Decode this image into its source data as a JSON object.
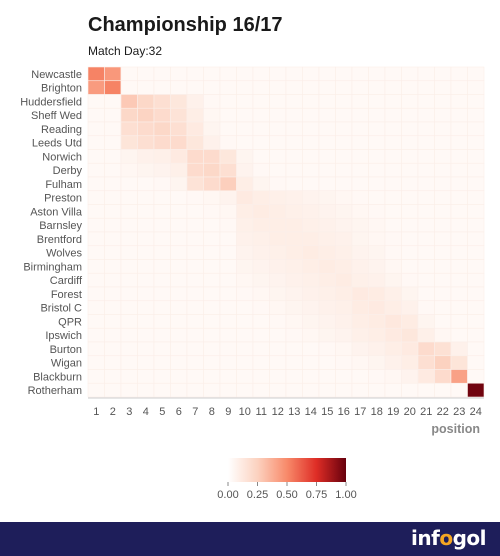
{
  "header": {
    "title": "Championship 16/17",
    "subtitle": "Match Day:32"
  },
  "chart_data": {
    "type": "heatmap",
    "title": "Championship 16/17",
    "subtitle": "Match Day:32",
    "xlabel": "position",
    "ylabel": "",
    "x": [
      1,
      2,
      3,
      4,
      5,
      6,
      7,
      8,
      9,
      10,
      11,
      12,
      13,
      14,
      15,
      16,
      17,
      18,
      19,
      20,
      21,
      22,
      23,
      24
    ],
    "teams": [
      "Newcastle",
      "Brighton",
      "Huddersfield",
      "Sheff Wed",
      "Reading",
      "Leeds Utd",
      "Norwich",
      "Derby",
      "Fulham",
      "Preston",
      "Aston Villa",
      "Barnsley",
      "Brentford",
      "Wolves",
      "Birmingham",
      "Cardiff",
      "Forest",
      "Bristol C",
      "QPR",
      "Ipswich",
      "Burton",
      "Wigan",
      "Blackburn",
      "Rotherham"
    ],
    "color_scale": {
      "min": 0,
      "max": 1,
      "low_color": "#ffffff",
      "high_color": "#67000d",
      "ticks": [
        "0.00",
        "0.25",
        "0.50",
        "0.75",
        "1.00"
      ]
    },
    "values": [
      [
        0.52,
        0.45,
        0.02,
        0.01,
        0,
        0,
        0,
        0,
        0,
        0,
        0,
        0,
        0,
        0,
        0,
        0,
        0,
        0,
        0,
        0,
        0,
        0,
        0,
        0
      ],
      [
        0.44,
        0.52,
        0.03,
        0.01,
        0,
        0,
        0,
        0,
        0,
        0,
        0,
        0,
        0,
        0,
        0,
        0,
        0,
        0,
        0,
        0,
        0,
        0,
        0,
        0
      ],
      [
        0.01,
        0.02,
        0.28,
        0.22,
        0.18,
        0.14,
        0.08,
        0.04,
        0.02,
        0.01,
        0,
        0,
        0,
        0,
        0,
        0,
        0,
        0,
        0,
        0,
        0,
        0,
        0,
        0
      ],
      [
        0,
        0.01,
        0.22,
        0.24,
        0.2,
        0.16,
        0.1,
        0.05,
        0.02,
        0.01,
        0,
        0,
        0,
        0,
        0,
        0,
        0,
        0,
        0,
        0,
        0,
        0,
        0,
        0
      ],
      [
        0,
        0,
        0.18,
        0.2,
        0.22,
        0.18,
        0.12,
        0.06,
        0.03,
        0.01,
        0,
        0,
        0,
        0,
        0,
        0,
        0,
        0,
        0,
        0,
        0,
        0,
        0,
        0
      ],
      [
        0,
        0,
        0.15,
        0.18,
        0.2,
        0.2,
        0.14,
        0.08,
        0.04,
        0.01,
        0,
        0,
        0,
        0,
        0,
        0,
        0,
        0,
        0,
        0,
        0,
        0,
        0,
        0
      ],
      [
        0,
        0,
        0.06,
        0.08,
        0.09,
        0.12,
        0.2,
        0.2,
        0.14,
        0.06,
        0.03,
        0.02,
        0,
        0,
        0,
        0,
        0,
        0,
        0,
        0,
        0,
        0,
        0,
        0
      ],
      [
        0,
        0,
        0.05,
        0.06,
        0.07,
        0.09,
        0.2,
        0.22,
        0.18,
        0.07,
        0.04,
        0.02,
        0,
        0,
        0,
        0,
        0,
        0,
        0,
        0,
        0,
        0,
        0,
        0
      ],
      [
        0,
        0,
        0.02,
        0.03,
        0.04,
        0.06,
        0.16,
        0.2,
        0.26,
        0.1,
        0.06,
        0.04,
        0.02,
        0.01,
        0,
        0,
        0,
        0,
        0,
        0,
        0,
        0,
        0,
        0
      ],
      [
        0,
        0,
        0,
        0.01,
        0.01,
        0.02,
        0.04,
        0.05,
        0.07,
        0.12,
        0.1,
        0.09,
        0.08,
        0.07,
        0.06,
        0.05,
        0.04,
        0.03,
        0.02,
        0.01,
        0,
        0,
        0,
        0
      ],
      [
        0,
        0,
        0,
        0,
        0.01,
        0.01,
        0.03,
        0.04,
        0.05,
        0.1,
        0.11,
        0.1,
        0.09,
        0.08,
        0.07,
        0.06,
        0.05,
        0.04,
        0.03,
        0.02,
        0.01,
        0,
        0,
        0
      ],
      [
        0,
        0,
        0,
        0,
        0,
        0.01,
        0.02,
        0.03,
        0.04,
        0.09,
        0.1,
        0.1,
        0.1,
        0.09,
        0.08,
        0.07,
        0.06,
        0.05,
        0.03,
        0.02,
        0.01,
        0,
        0,
        0
      ],
      [
        0,
        0,
        0,
        0,
        0,
        0,
        0.02,
        0.02,
        0.03,
        0.08,
        0.09,
        0.1,
        0.1,
        0.1,
        0.09,
        0.08,
        0.06,
        0.05,
        0.04,
        0.02,
        0.01,
        0,
        0,
        0
      ],
      [
        0,
        0,
        0,
        0,
        0,
        0,
        0.01,
        0.02,
        0.03,
        0.07,
        0.08,
        0.09,
        0.1,
        0.11,
        0.1,
        0.09,
        0.07,
        0.06,
        0.04,
        0.03,
        0.01,
        0,
        0,
        0
      ],
      [
        0,
        0,
        0,
        0,
        0,
        0,
        0.01,
        0.01,
        0.02,
        0.06,
        0.07,
        0.08,
        0.09,
        0.1,
        0.11,
        0.1,
        0.08,
        0.07,
        0.05,
        0.03,
        0.02,
        0.01,
        0,
        0
      ],
      [
        0,
        0,
        0,
        0,
        0,
        0,
        0,
        0.01,
        0.02,
        0.05,
        0.06,
        0.07,
        0.08,
        0.09,
        0.1,
        0.11,
        0.09,
        0.08,
        0.06,
        0.04,
        0.02,
        0.01,
        0,
        0
      ],
      [
        0,
        0,
        0,
        0,
        0,
        0,
        0,
        0,
        0.01,
        0.04,
        0.05,
        0.06,
        0.07,
        0.08,
        0.09,
        0.1,
        0.12,
        0.11,
        0.09,
        0.06,
        0.03,
        0.01,
        0,
        0
      ],
      [
        0,
        0,
        0,
        0,
        0,
        0,
        0,
        0,
        0.01,
        0.03,
        0.04,
        0.05,
        0.06,
        0.07,
        0.08,
        0.09,
        0.11,
        0.12,
        0.1,
        0.08,
        0.04,
        0.02,
        0,
        0
      ],
      [
        0,
        0,
        0,
        0,
        0,
        0,
        0,
        0,
        0,
        0.02,
        0.03,
        0.04,
        0.05,
        0.06,
        0.07,
        0.08,
        0.1,
        0.11,
        0.13,
        0.11,
        0.06,
        0.03,
        0.01,
        0
      ],
      [
        0,
        0,
        0,
        0,
        0,
        0,
        0,
        0,
        0,
        0.02,
        0.02,
        0.03,
        0.04,
        0.05,
        0.06,
        0.07,
        0.09,
        0.1,
        0.12,
        0.14,
        0.09,
        0.05,
        0.02,
        0
      ],
      [
        0,
        0,
        0,
        0,
        0,
        0,
        0,
        0,
        0,
        0.01,
        0.01,
        0.02,
        0.02,
        0.03,
        0.04,
        0.05,
        0.07,
        0.08,
        0.1,
        0.12,
        0.2,
        0.17,
        0.08,
        0
      ],
      [
        0,
        0,
        0,
        0,
        0,
        0,
        0,
        0,
        0,
        0,
        0.01,
        0.01,
        0.02,
        0.02,
        0.03,
        0.04,
        0.05,
        0.06,
        0.08,
        0.1,
        0.18,
        0.25,
        0.15,
        0
      ],
      [
        0,
        0,
        0,
        0,
        0,
        0,
        0,
        0,
        0,
        0,
        0,
        0.01,
        0.01,
        0.01,
        0.02,
        0.02,
        0.03,
        0.04,
        0.05,
        0.07,
        0.12,
        0.2,
        0.42,
        0.01
      ],
      [
        0,
        0,
        0,
        0,
        0,
        0,
        0,
        0,
        0,
        0,
        0,
        0,
        0,
        0,
        0,
        0,
        0,
        0,
        0,
        0,
        0,
        0,
        0.02,
        0.98
      ]
    ]
  },
  "footer": {
    "logo_text": "infogol",
    "accent": "#f5a623",
    "background": "#1e1e5a"
  }
}
